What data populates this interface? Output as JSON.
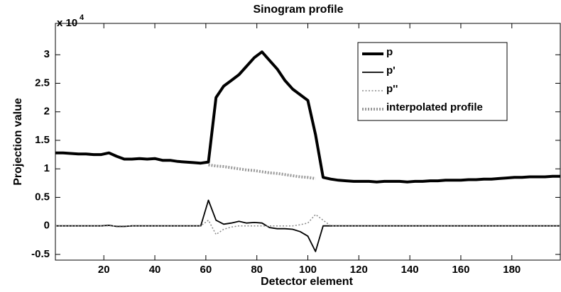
{
  "chart_data": {
    "type": "line",
    "title": "Sinogram profile",
    "xlabel": "Detector element",
    "ylabel": "Projection value",
    "y_multiplier": {
      "base": "x 10",
      "exponent": "4"
    },
    "xlim": [
      1,
      199
    ],
    "ylim": [
      -0.6,
      3.55
    ],
    "xticks": [
      20,
      40,
      60,
      80,
      100,
      120,
      140,
      160,
      180
    ],
    "yticks": [
      -0.5,
      0,
      0.5,
      1,
      1.5,
      2,
      2.5,
      3
    ],
    "grid": false,
    "legend": "northeast",
    "x": [
      1,
      4,
      7,
      10,
      13,
      16,
      19,
      22,
      25,
      28,
      31,
      34,
      37,
      40,
      43,
      46,
      49,
      52,
      55,
      58,
      61,
      64,
      67,
      70,
      73,
      76,
      79,
      82,
      85,
      88,
      91,
      94,
      97,
      100,
      103,
      106,
      109,
      112,
      115,
      118,
      121,
      124,
      127,
      130,
      133,
      136,
      139,
      142,
      145,
      148,
      151,
      154,
      157,
      160,
      163,
      166,
      169,
      172,
      175,
      178,
      181,
      184,
      187,
      190,
      193,
      196,
      199
    ],
    "series": [
      {
        "name": "p",
        "color": "#000000",
        "linewidth": 4,
        "linestyle": "solid",
        "values": [
          1.28,
          1.28,
          1.27,
          1.26,
          1.26,
          1.25,
          1.25,
          1.28,
          1.22,
          1.17,
          1.17,
          1.18,
          1.17,
          1.18,
          1.15,
          1.15,
          1.13,
          1.12,
          1.11,
          1.1,
          1.12,
          2.25,
          2.45,
          2.55,
          2.65,
          2.8,
          2.95,
          3.05,
          2.9,
          2.75,
          2.55,
          2.4,
          2.3,
          2.2,
          1.6,
          0.85,
          0.82,
          0.8,
          0.79,
          0.78,
          0.78,
          0.78,
          0.77,
          0.78,
          0.78,
          0.78,
          0.77,
          0.78,
          0.78,
          0.79,
          0.79,
          0.8,
          0.8,
          0.8,
          0.81,
          0.81,
          0.82,
          0.82,
          0.83,
          0.84,
          0.85,
          0.85,
          0.86,
          0.86,
          0.86,
          0.87,
          0.87
        ]
      },
      {
        "name": "p'",
        "color": "#000000",
        "linewidth": 1.8,
        "linestyle": "solid",
        "values": [
          0,
          0,
          0,
          0,
          0,
          0,
          0,
          0.01,
          -0.01,
          -0.01,
          0,
          0,
          0,
          0,
          0,
          0,
          0,
          0,
          0,
          0,
          0.45,
          0.1,
          0.03,
          0.05,
          0.08,
          0.05,
          0.06,
          0.05,
          -0.03,
          -0.05,
          -0.05,
          -0.06,
          -0.1,
          -0.18,
          -0.45,
          0,
          0,
          0,
          0,
          0,
          0,
          0,
          0,
          0,
          0,
          0,
          0,
          0,
          0,
          0,
          0,
          0,
          0,
          0,
          0,
          0,
          0,
          0,
          0,
          0,
          0,
          0,
          0,
          0,
          0,
          0,
          0
        ]
      },
      {
        "name": "p''",
        "color": "#888888",
        "linewidth": 1.5,
        "linestyle": "dotted",
        "values": [
          0,
          0,
          0,
          0,
          0,
          0,
          0,
          0,
          0,
          0,
          0,
          0,
          0,
          0,
          0,
          0,
          0,
          0,
          0,
          0,
          0.1,
          -0.15,
          -0.06,
          -0.02,
          0,
          0,
          0,
          0,
          0,
          0,
          0,
          0,
          0.02,
          0.05,
          0.2,
          0.1,
          0,
          0,
          0,
          0,
          0,
          0,
          0,
          0,
          0,
          0,
          0,
          0,
          0,
          0,
          0,
          0,
          0,
          0,
          0,
          0,
          0,
          0,
          0,
          0,
          0,
          0,
          0,
          0,
          0,
          0,
          0
        ]
      },
      {
        "name": "interpolated profile",
        "color": "#999999",
        "linewidth": 4,
        "linestyle": "dotted",
        "values": [
          null,
          null,
          null,
          null,
          null,
          null,
          null,
          null,
          null,
          null,
          null,
          null,
          null,
          null,
          null,
          null,
          null,
          null,
          null,
          null,
          1.07,
          1.05,
          1.04,
          1.02,
          1.0,
          0.98,
          0.97,
          0.95,
          0.93,
          0.92,
          0.9,
          0.88,
          0.86,
          0.85,
          0.83,
          null,
          null,
          null,
          null,
          null,
          null,
          null,
          null,
          null,
          null,
          null,
          null,
          null,
          null,
          null,
          null,
          null,
          null,
          null,
          null,
          null,
          null,
          null,
          null,
          null,
          null,
          null,
          null,
          null,
          null,
          null,
          null
        ]
      }
    ]
  }
}
